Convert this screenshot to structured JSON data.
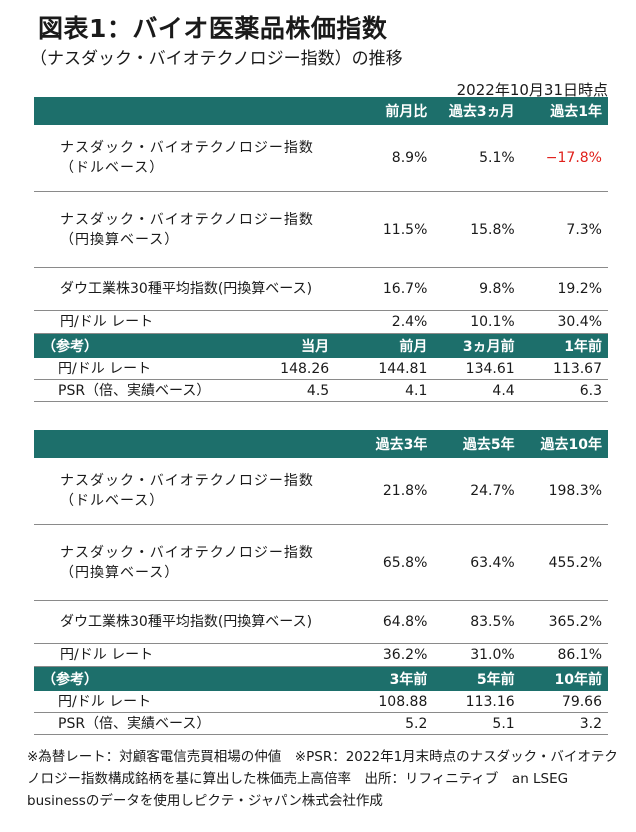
{
  "title": "図表1：バイオ医薬品株価指数",
  "subtitle": "（ナスダック・バイオテクノロジー指数）の推移",
  "date": "2022年10月31日時点",
  "colors": {
    "header_bg": "#1d6f6b",
    "negative": "#e0201b"
  },
  "table1": {
    "headers": [
      "前月比",
      "過去3ヵ月",
      "過去1年"
    ],
    "rows": [
      {
        "label": "ナスダック・バイオテクノロジー指数（ドルベース）",
        "values": [
          "8.9%",
          "5.1%",
          "−17.8%"
        ]
      },
      {
        "label": "ナスダック・バイオテクノロジー指数（円換算ベース）",
        "values": [
          "11.5%",
          "15.8%",
          "7.3%"
        ]
      },
      {
        "label": "ダウ工業株30種平均指数(円換算ベース)",
        "values": [
          "16.7%",
          "9.8%",
          "19.2%"
        ]
      },
      {
        "label": "円/ドル レート",
        "values": [
          "2.4%",
          "10.1%",
          "30.4%"
        ]
      }
    ],
    "ref_label": "（参考）",
    "ref_headers": [
      "当月",
      "前月",
      "3ヵ月前",
      "1年前"
    ],
    "ref_rows": [
      {
        "label": "円/ドル レート",
        "values": [
          "148.26",
          "144.81",
          "134.61",
          "113.67"
        ]
      },
      {
        "label": "PSR（倍、実績ベース）",
        "values": [
          "4.5",
          "4.1",
          "4.4",
          "6.3"
        ]
      }
    ]
  },
  "table2": {
    "headers": [
      "過去3年",
      "過去5年",
      "過去10年"
    ],
    "rows": [
      {
        "label": "ナスダック・バイオテクノロジー指数（ドルベース）",
        "values": [
          "21.8%",
          "24.7%",
          "198.3%"
        ]
      },
      {
        "label": "ナスダック・バイオテクノロジー指数（円換算ベース）",
        "values": [
          "65.8%",
          "63.4%",
          "455.2%"
        ]
      },
      {
        "label": "ダウ工業株30種平均指数(円換算ベース)",
        "values": [
          "64.8%",
          "83.5%",
          "365.2%"
        ]
      },
      {
        "label": "円/ドル レート",
        "values": [
          "36.2%",
          "31.0%",
          "86.1%"
        ]
      }
    ],
    "ref_label": "（参考）",
    "ref_headers": [
      "3年前",
      "5年前",
      "10年前"
    ],
    "ref_rows": [
      {
        "label": "円/ドル レート",
        "values": [
          "108.88",
          "113.16",
          "79.66"
        ]
      },
      {
        "label": "PSR（倍、実績ベース）",
        "values": [
          "5.2",
          "5.1",
          "3.2"
        ]
      }
    ]
  },
  "footnote": "※為替レート：対顧客電信売買相場の仲値　※PSR：2022年1月末時点のナスダック・バイオテクノロジー指数構成銘柄を基に算出した株価売上高倍率　出所：リフィニティブ　an LSEG businessのデータを使用しピクテ・ジャパン株式会社作成"
}
